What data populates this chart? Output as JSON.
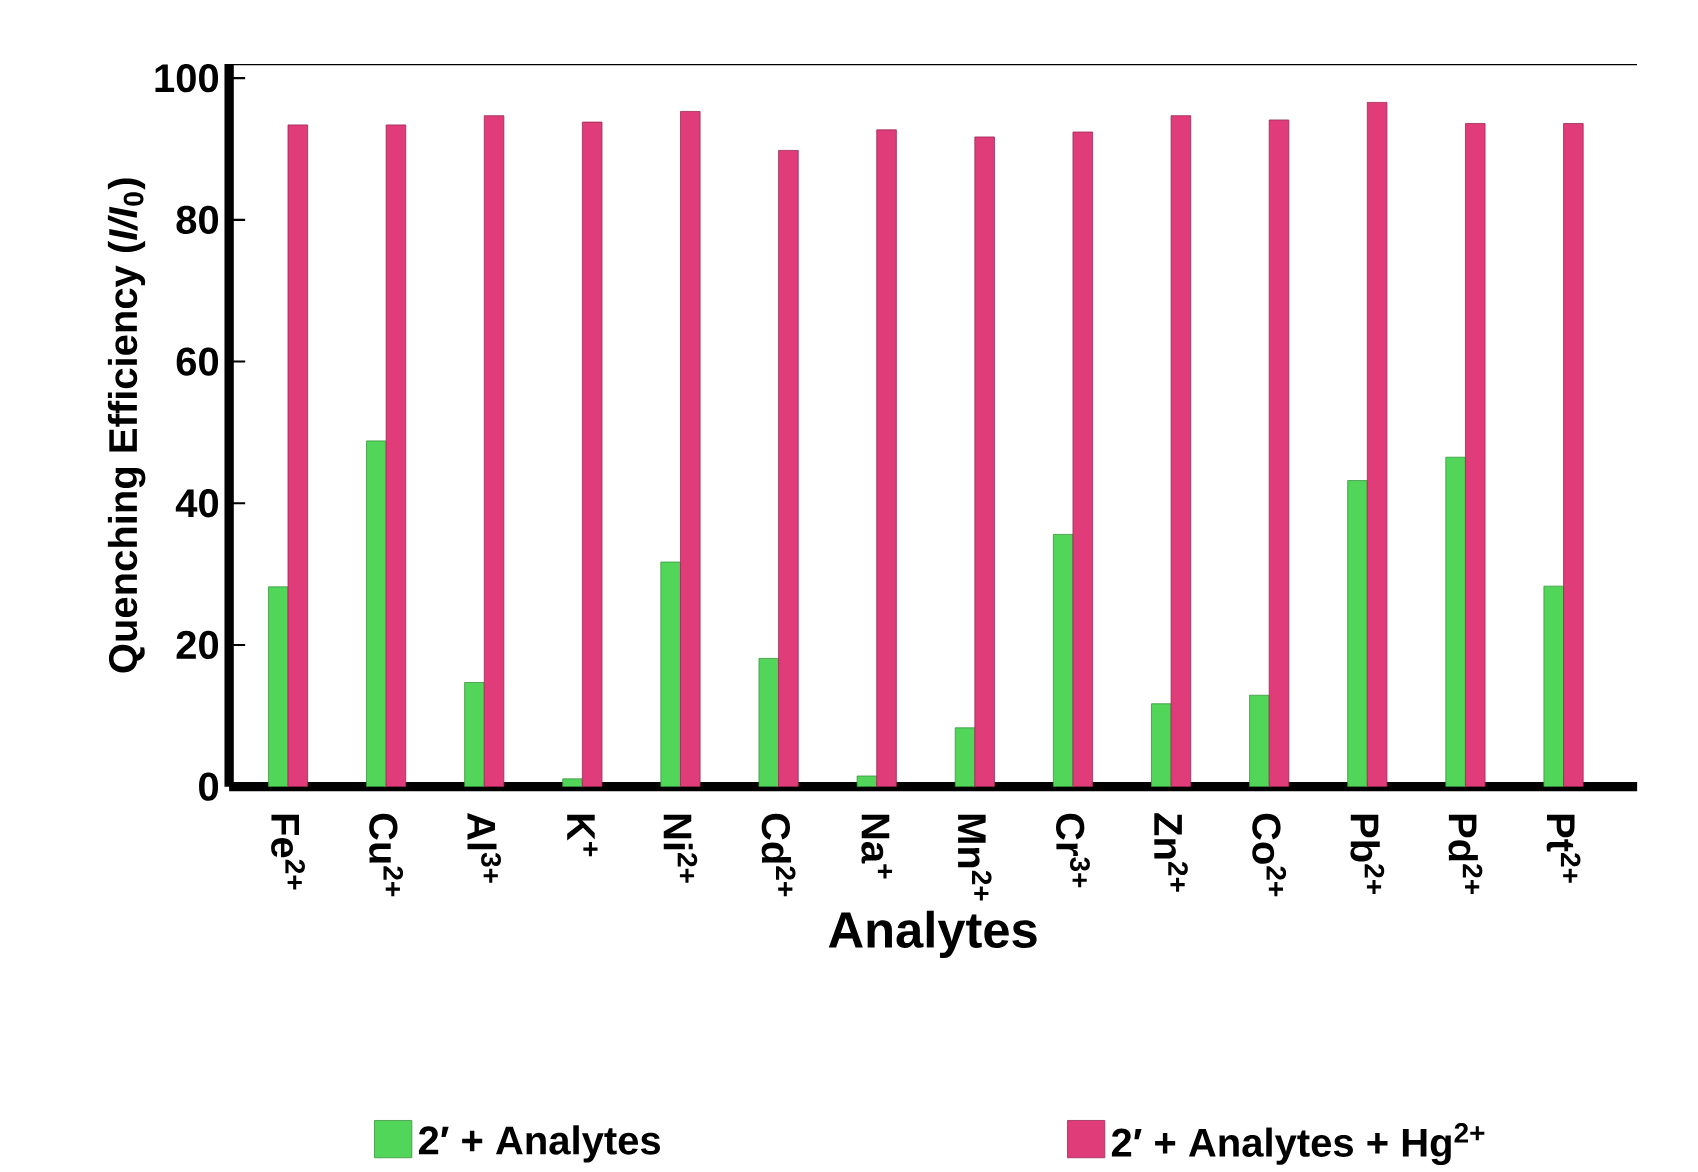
{
  "chart_data": {
    "type": "bar",
    "xlabel": "Analytes",
    "ylabel": "Quenching Efficiency (*I/I*$_{0}$)",
    "categories": [
      "Fe$^{2+}$",
      "Cu$^{2+}$",
      "Al$^{3+}$",
      "K$^{+}$",
      "Ni$^{2+}$",
      "Cd$^{2+}$",
      "Na$^{+}$",
      "Mn$^{2+}$",
      "Cr$^{3+}$",
      "Zn$^{2+}$",
      "Co$^{2+}$",
      "Pb$^{2+}$",
      "Pd$^{2+}$",
      "Pt$^{2+}$"
    ],
    "series": [
      {
        "name": "2′ + Analytes",
        "color": "#52d65a",
        "values": [
          28.2,
          48.8,
          14.7,
          1.1,
          31.7,
          18.1,
          1.5,
          8.3,
          35.6,
          11.7,
          12.9,
          43.2,
          46.5,
          28.3
        ]
      },
      {
        "name": "2′ + Analytes + Hg$^{2+}$",
        "color": "#e03c7a",
        "values": [
          93.4,
          93.4,
          94.7,
          93.8,
          95.3,
          89.8,
          92.7,
          91.7,
          92.4,
          94.7,
          94.1,
          96.6,
          93.6,
          93.6
        ]
      }
    ],
    "ylim": [
      0,
      102
    ],
    "yticks": [
      0,
      20,
      40,
      60,
      80,
      100
    ],
    "grid": false,
    "legend": "bottom"
  }
}
